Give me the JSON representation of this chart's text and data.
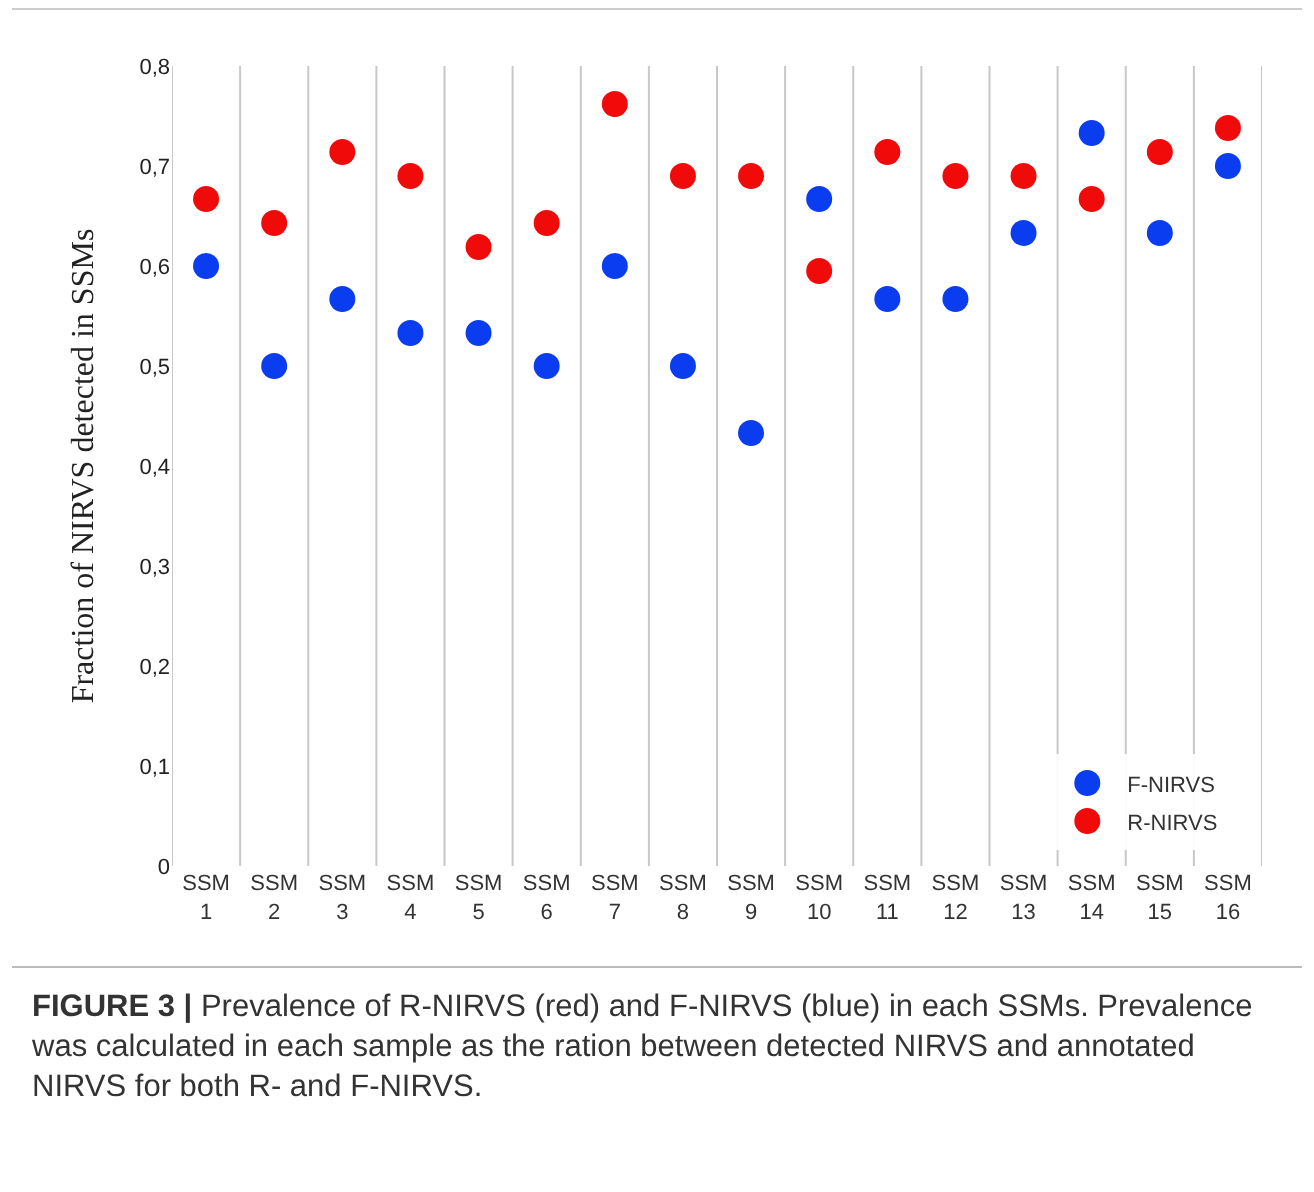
{
  "chart_data": {
    "type": "scatter",
    "ylabel": "Fraction of NIRVS detected in SSMs",
    "categories": [
      "SSM 1",
      "SSM 2",
      "SSM 3",
      "SSM 4",
      "SSM 5",
      "SSM 6",
      "SSM 7",
      "SSM 8",
      "SSM 9",
      "SSM 10",
      "SSM 11",
      "SSM 12",
      "SSM 13",
      "SSM 14",
      "SSM 15",
      "SSM 16"
    ],
    "series": [
      {
        "name": "F-NIRVS",
        "color": "#0a3cf0",
        "values": [
          0.6,
          0.5,
          0.567,
          0.533,
          0.533,
          0.5,
          0.6,
          0.5,
          0.433,
          0.667,
          0.567,
          0.567,
          0.633,
          0.733,
          0.633,
          0.7
        ]
      },
      {
        "name": "R-NIRVS",
        "color": "#f00a0a",
        "values": [
          0.667,
          0.643,
          0.714,
          0.69,
          0.619,
          0.643,
          0.762,
          0.69,
          0.69,
          0.595,
          0.714,
          0.69,
          0.69,
          0.667,
          0.714,
          0.738
        ]
      }
    ],
    "ylim": [
      0,
      0.8
    ],
    "yticks": [
      0,
      {
        "value": 0.1,
        "label": "0,1"
      },
      {
        "value": 0.2,
        "label": "0,2"
      },
      {
        "value": 0.3,
        "label": "0,3"
      },
      {
        "value": 0.4,
        "label": "0,4"
      },
      {
        "value": 0.5,
        "label": "0,5"
      },
      {
        "value": 0.6,
        "label": "0,6"
      },
      {
        "value": 0.7,
        "label": "0,7"
      },
      {
        "value": 0.8,
        "label": "0,8"
      }
    ],
    "grid": "x",
    "legend": "bottom right",
    "marker": "circle",
    "annotations": [
      "FIGURE 3 | Prevalence of R-NIRVS (red) and F-NIRVS (blue) in each SSMs. Prevalence was calculated in each sample as the ration between detected NIRVS and annotated NIRVS for both R- and F-NIRVS."
    ]
  }
}
